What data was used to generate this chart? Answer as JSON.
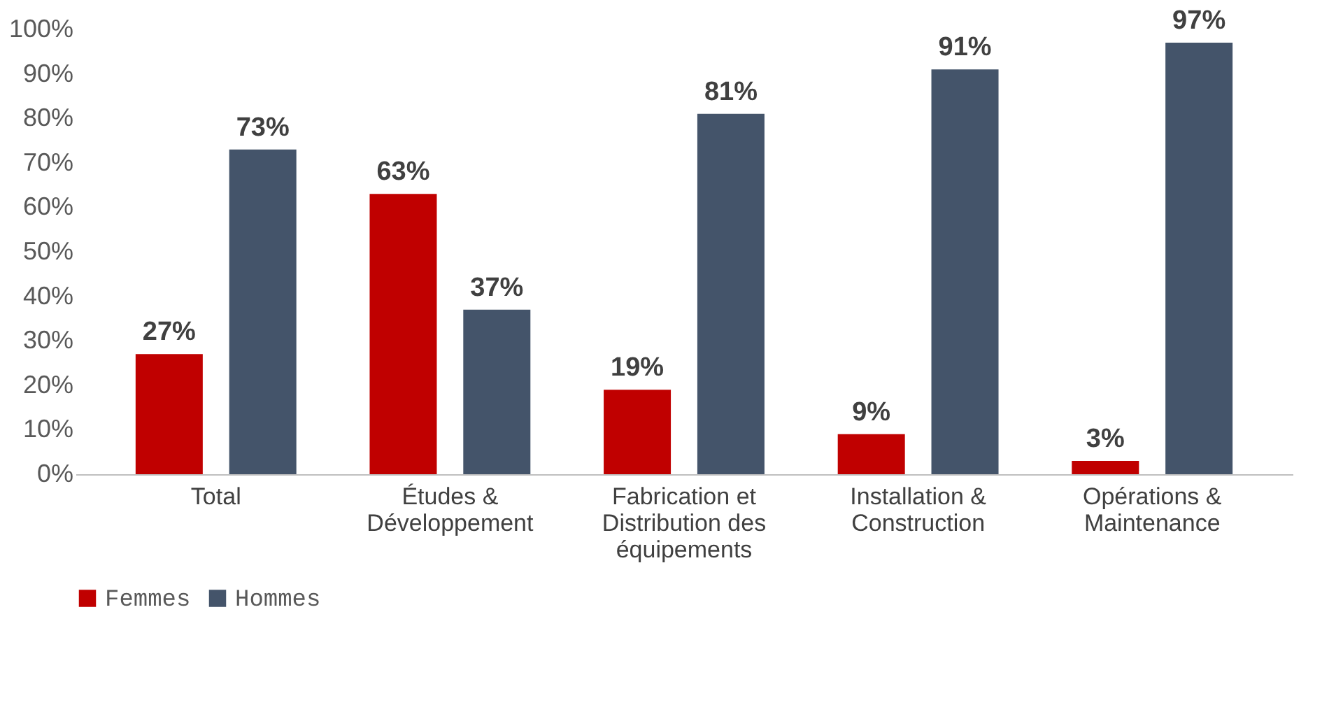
{
  "chart_data": {
    "type": "bar",
    "categories": [
      "Total",
      "Études & Développement",
      "Fabrication et Distribution des équipements",
      "Installation & Construction",
      "Opérations & Maintenance"
    ],
    "series": [
      {
        "name": "Femmes",
        "color": "#c00000",
        "values": [
          27,
          63,
          19,
          9,
          3
        ],
        "value_labels": [
          "27%",
          "63%",
          "19%",
          "9%",
          "3%"
        ]
      },
      {
        "name": "Hommes",
        "color": "#44546a",
        "values": [
          73,
          37,
          81,
          91,
          97
        ],
        "value_labels": [
          "73%",
          "37%",
          "81%",
          "91%",
          "97%"
        ]
      }
    ],
    "ylim": [
      0,
      100
    ],
    "yticks": [
      {
        "value": 0,
        "label": "0%"
      },
      {
        "value": 10,
        "label": "10%"
      },
      {
        "value": 20,
        "label": "20%"
      },
      {
        "value": 30,
        "label": "30%"
      },
      {
        "value": 40,
        "label": "40%"
      },
      {
        "value": 50,
        "label": "50%"
      },
      {
        "value": 60,
        "label": "60%"
      },
      {
        "value": 70,
        "label": "70%"
      },
      {
        "value": 80,
        "label": "80%"
      },
      {
        "value": 90,
        "label": "90%"
      },
      {
        "value": 100,
        "label": "100%"
      }
    ],
    "grid": false,
    "legend": "bottom"
  }
}
